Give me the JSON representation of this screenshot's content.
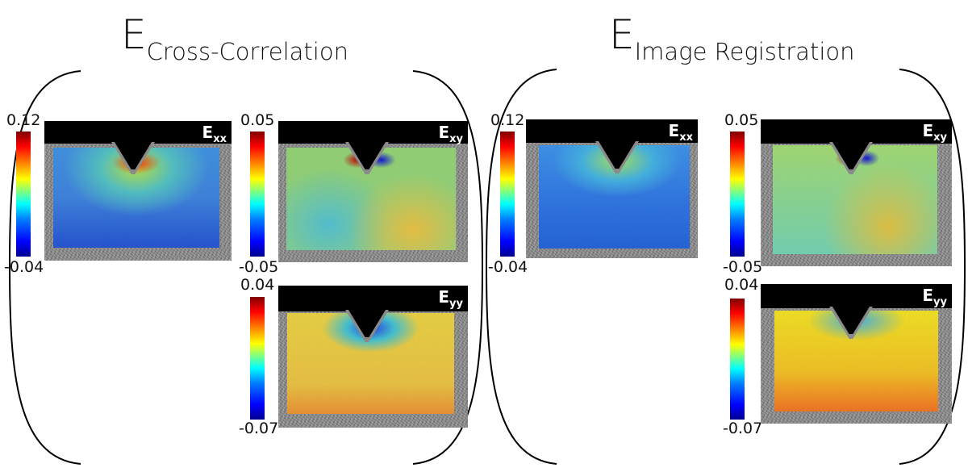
{
  "groups": [
    {
      "title_main": "E",
      "title_sub": "Cross-Correlation",
      "panels": [
        {
          "component": "E",
          "component_sub": "xx",
          "max": "0.12",
          "min": "-0.04",
          "colormap": "jet"
        },
        {
          "component": "E",
          "component_sub": "xy",
          "max": "0.05",
          "min": "-0.05",
          "colormap": "jet"
        },
        {
          "component": "E",
          "component_sub": "yy",
          "max": "0.04",
          "min": "-0.07",
          "colormap": "jet"
        }
      ]
    },
    {
      "title_main": "E",
      "title_sub": "Image Registration",
      "panels": [
        {
          "component": "E",
          "component_sub": "xx",
          "max": "0.12",
          "min": "-0.04",
          "colormap": "jet"
        },
        {
          "component": "E",
          "component_sub": "xy",
          "max": "0.05",
          "min": "-0.05",
          "colormap": "jet"
        },
        {
          "component": "E",
          "component_sub": "yy",
          "max": "0.04",
          "min": "-0.07",
          "colormap": "jet"
        }
      ]
    }
  ]
}
